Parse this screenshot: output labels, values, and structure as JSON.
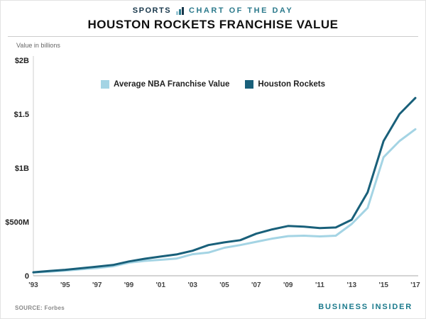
{
  "header": {
    "kicker_left": "SPORTS",
    "kicker_right": "CHART OF THE DAY",
    "title": "HOUSTON ROCKETS FRANCHISE VALUE"
  },
  "chart": {
    "value_note": "Value in billions"
  },
  "footer": {
    "source": "SOURCE: Forbes",
    "brand": "BUSINESS INSIDER"
  },
  "chart_data": {
    "type": "line",
    "title": "Houston Rockets Franchise Value",
    "ylabel": "Value in billions",
    "unit": "millions USD",
    "grid": false,
    "legend_position": "top-center",
    "ylim": [
      0,
      2000
    ],
    "x": [
      1993,
      1994,
      1995,
      1996,
      1997,
      1998,
      1999,
      2000,
      2001,
      2002,
      2003,
      2004,
      2005,
      2006,
      2007,
      2008,
      2009,
      2010,
      2011,
      2012,
      2013,
      2014,
      2015,
      2016,
      2017
    ],
    "x_tick_values": [
      1993,
      1995,
      1997,
      1999,
      2001,
      2003,
      2005,
      2007,
      2009,
      2011,
      2013,
      2015,
      2017
    ],
    "x_tick_labels": [
      "'93",
      "'95",
      "'97",
      "'99",
      "'01",
      "'03",
      "'05",
      "'07",
      "'09",
      "'11",
      "'13",
      "'15",
      "'17"
    ],
    "y_ticks": [
      {
        "label": "$2B",
        "value": 2000
      },
      {
        "label": "$1.5",
        "value": 1500
      },
      {
        "label": "$1B",
        "value": 1000
      },
      {
        "label": "$500M",
        "value": 500
      },
      {
        "label": "0",
        "value": 0
      }
    ],
    "series": [
      {
        "name": "Average NBA Franchise Value",
        "color": "#a4d4e4",
        "values": [
          30,
          38,
          48,
          60,
          72,
          88,
          122,
          138,
          148,
          160,
          200,
          215,
          260,
          285,
          315,
          345,
          368,
          372,
          365,
          372,
          480,
          630,
          1100,
          1250,
          1360
        ]
      },
      {
        "name": "Houston Rockets",
        "color": "#19607a",
        "values": [
          32,
          45,
          55,
          70,
          85,
          100,
          133,
          158,
          178,
          198,
          232,
          285,
          310,
          330,
          390,
          430,
          462,
          455,
          443,
          448,
          520,
          775,
          1250,
          1500,
          1650
        ]
      }
    ]
  }
}
